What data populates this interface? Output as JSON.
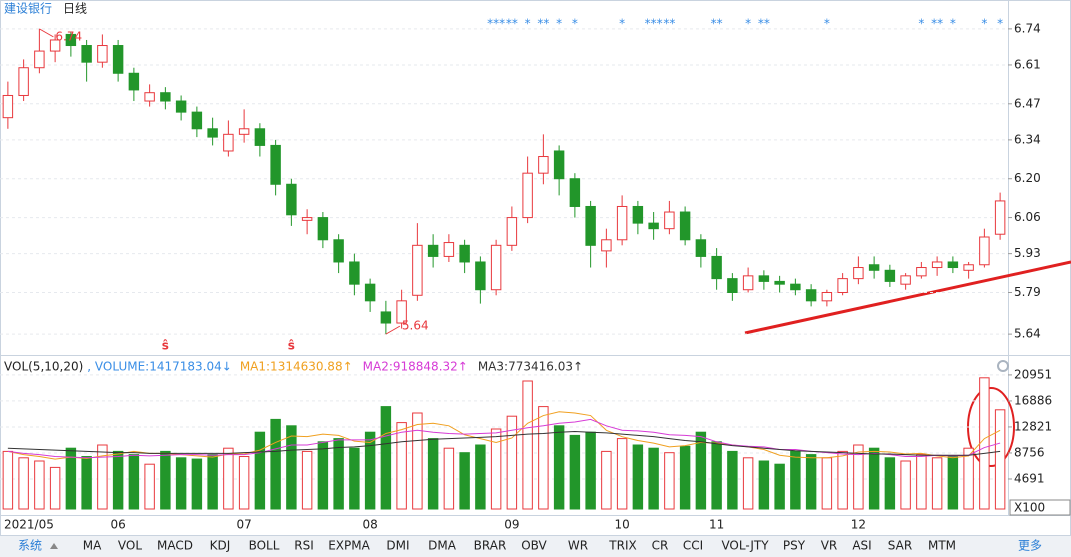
{
  "header": {
    "stock": "建设银行",
    "period": "日线"
  },
  "chart_data": [
    {
      "type": "candlestick",
      "categories": [
        "2021/05",
        null,
        null,
        null,
        null,
        null,
        null,
        "06",
        null,
        null,
        null,
        null,
        null,
        null,
        null,
        "07",
        null,
        null,
        null,
        null,
        null,
        null,
        null,
        "08",
        null,
        null,
        null,
        null,
        null,
        null,
        null,
        null,
        "09",
        null,
        null,
        null,
        null,
        null,
        null,
        "10",
        null,
        null,
        null,
        null,
        null,
        "11",
        null,
        null,
        null,
        null,
        null,
        null,
        null,
        null,
        "12",
        null,
        null,
        null,
        null,
        null,
        null,
        null,
        null,
        null
      ],
      "open": [
        6.42,
        6.5,
        6.6,
        6.66,
        6.72,
        6.68,
        6.62,
        6.68,
        6.58,
        6.48,
        6.51,
        6.48,
        6.44,
        6.38,
        6.3,
        6.36,
        6.38,
        6.32,
        6.18,
        6.05,
        6.06,
        5.98,
        5.9,
        5.82,
        5.72,
        5.68,
        5.78,
        5.96,
        5.92,
        5.96,
        5.9,
        5.8,
        5.96,
        6.06,
        6.22,
        6.3,
        6.2,
        6.1,
        5.94,
        5.98,
        6.1,
        6.04,
        6.02,
        6.08,
        5.98,
        5.92,
        5.84,
        5.8,
        5.85,
        5.83,
        5.82,
        5.8,
        5.76,
        5.79,
        5.84,
        5.89,
        5.87,
        5.82,
        5.85,
        5.88,
        5.9,
        5.87,
        5.89,
        6.0
      ],
      "high": [
        6.55,
        6.63,
        6.74,
        6.72,
        6.73,
        6.7,
        6.72,
        6.7,
        6.6,
        6.54,
        6.53,
        6.5,
        6.46,
        6.42,
        6.41,
        6.45,
        6.4,
        6.34,
        6.2,
        6.09,
        6.08,
        6.0,
        5.93,
        5.84,
        5.76,
        5.8,
        6.04,
        6.0,
        6.0,
        5.98,
        5.92,
        5.98,
        6.1,
        6.28,
        6.36,
        6.32,
        6.22,
        6.12,
        6.02,
        6.14,
        6.12,
        6.08,
        6.12,
        6.1,
        6.0,
        5.95,
        5.86,
        5.88,
        5.87,
        5.85,
        5.84,
        5.82,
        5.8,
        5.86,
        5.92,
        5.92,
        5.89,
        5.86,
        5.9,
        5.92,
        5.92,
        5.9,
        6.02,
        6.15
      ],
      "low": [
        6.38,
        6.48,
        6.58,
        6.62,
        6.64,
        6.55,
        6.6,
        6.55,
        6.48,
        6.46,
        6.45,
        6.41,
        6.35,
        6.32,
        6.28,
        6.33,
        6.28,
        6.14,
        6.03,
        6.0,
        5.95,
        5.86,
        5.78,
        5.72,
        5.64,
        5.66,
        5.76,
        5.88,
        5.9,
        5.86,
        5.75,
        5.78,
        5.94,
        6.04,
        6.18,
        6.14,
        6.06,
        5.88,
        5.88,
        5.96,
        6.0,
        5.98,
        6.0,
        5.96,
        5.88,
        5.8,
        5.76,
        5.79,
        5.8,
        5.79,
        5.78,
        5.74,
        5.74,
        5.78,
        5.82,
        5.84,
        5.81,
        5.8,
        5.84,
        5.85,
        5.86,
        5.84,
        5.88,
        5.98
      ],
      "close": [
        6.5,
        6.6,
        6.66,
        6.7,
        6.68,
        6.62,
        6.68,
        6.58,
        6.52,
        6.51,
        6.48,
        6.44,
        6.38,
        6.35,
        6.36,
        6.38,
        6.32,
        6.18,
        6.07,
        6.06,
        5.98,
        5.9,
        5.82,
        5.76,
        5.68,
        5.76,
        5.96,
        5.92,
        5.97,
        5.9,
        5.8,
        5.96,
        6.06,
        6.22,
        6.28,
        6.2,
        6.1,
        5.96,
        5.98,
        6.1,
        6.04,
        6.02,
        6.08,
        5.98,
        5.92,
        5.84,
        5.79,
        5.85,
        5.83,
        5.82,
        5.8,
        5.76,
        5.79,
        5.84,
        5.88,
        5.87,
        5.83,
        5.85,
        5.88,
        5.9,
        5.88,
        5.89,
        5.99,
        6.12
      ],
      "up_color": "#e8383d",
      "down_color": "#22962a",
      "signals": [
        null,
        null,
        null,
        null,
        null,
        null,
        null,
        null,
        null,
        null,
        null,
        null,
        null,
        null,
        null,
        null,
        null,
        null,
        null,
        null,
        null,
        null,
        null,
        null,
        null,
        null,
        null,
        null,
        null,
        null,
        null,
        "***",
        "**",
        "*",
        "**",
        "*",
        "*",
        null,
        null,
        "*",
        null,
        "***",
        "**",
        null,
        null,
        "**",
        null,
        "*",
        "**",
        null,
        null,
        null,
        "*",
        null,
        null,
        null,
        null,
        null,
        "*",
        "**",
        "*",
        null,
        "*",
        "*"
      ],
      "signal_color": "#3a8ee6",
      "markers": [
        null,
        null,
        null,
        null,
        null,
        null,
        null,
        null,
        null,
        null,
        "ŝ",
        null,
        null,
        null,
        null,
        null,
        null,
        null,
        "ŝ",
        null,
        null,
        null,
        null,
        null,
        null,
        null,
        null,
        null,
        null,
        null,
        null,
        null,
        null,
        null,
        null,
        null,
        null,
        null,
        null,
        null,
        null,
        null,
        null,
        null,
        null,
        null,
        null,
        null,
        null,
        null,
        null,
        null,
        null,
        null,
        null,
        null,
        null,
        null,
        null,
        null,
        null,
        null,
        null,
        null
      ],
      "marker_color": "#e8383d",
      "ylim": [
        5.59,
        6.79
      ],
      "yticks": [
        6.74,
        6.61,
        6.47,
        6.34,
        {
          "value": 6.2,
          "label": "6.20"
        },
        6.06,
        5.93,
        5.79,
        5.64
      ],
      "grid": true
    },
    {
      "type": "volume",
      "title": "VOL(5,10,20)",
      "volume_label": ", VOLUME:1417183.04↓",
      "volume_color": "#3a8ee6",
      "values": [
        9000,
        8000,
        7500,
        6500,
        9500,
        8200,
        10000,
        9000,
        8500,
        7000,
        9000,
        8000,
        7800,
        8500,
        9500,
        8200,
        12000,
        14000,
        13000,
        9000,
        10500,
        11000,
        9500,
        12000,
        16000,
        13500,
        15000,
        11000,
        9500,
        8800,
        10000,
        12500,
        14500,
        20000,
        16000,
        13000,
        11500,
        12000,
        9000,
        11000,
        10000,
        9500,
        8800,
        9800,
        12000,
        10500,
        9000,
        8000,
        7500,
        7000,
        9000,
        8500,
        8000,
        9000,
        10000,
        9500,
        8000,
        7500,
        8500,
        8000,
        8200,
        9500,
        20500,
        15500
      ],
      "series": [
        {
          "label": "MA1:1314630.88↑",
          "color": "#f0a020",
          "values": [
            9000,
            8500,
            8200,
            7800,
            8100,
            7900,
            8300,
            8600,
            9000,
            8700,
            8700,
            8500,
            8300,
            8100,
            8600,
            8600,
            9200,
            10400,
            11400,
            11300,
            11700,
            11500,
            10600,
            10400,
            11800,
            12400,
            13200,
            13400,
            13000,
            11600,
            11000,
            10400,
            11100,
            13400,
            14600,
            15200,
            15000,
            14600,
            12300,
            11300,
            10700,
            10300,
            9700,
            9900,
            10400,
            10300,
            10000,
            9700,
            9300,
            8400,
            8100,
            8000,
            8000,
            8300,
            8900,
            9000,
            8900,
            8600,
            8700,
            8300,
            8000,
            8300,
            11000,
            12300
          ]
        },
        {
          "label": "MA2:918848.32↑",
          "color": "#d63bd6",
          "values": [
            9000,
            8700,
            8500,
            8200,
            8100,
            8000,
            8100,
            8200,
            8400,
            8300,
            8400,
            8500,
            8500,
            8400,
            8500,
            8500,
            8800,
            9400,
            10000,
            10000,
            10400,
            10800,
            10800,
            10800,
            11400,
            12000,
            12300,
            12000,
            11800,
            11700,
            11800,
            11900,
            12300,
            12700,
            13000,
            13400,
            13600,
            14000,
            13000,
            12300,
            12200,
            12000,
            11600,
            11500,
            11300,
            10500,
            10000,
            9800,
            9700,
            9300,
            9300,
            9000,
            8800,
            8600,
            8500,
            8700,
            8500,
            8200,
            8200,
            8400,
            8300,
            8400,
            9600,
            10300
          ]
        },
        {
          "label": "MA3:773416.03↑",
          "color": "#333333",
          "values": [
            9500,
            9400,
            9300,
            9200,
            9100,
            9000,
            8900,
            8800,
            8800,
            8700,
            8700,
            8700,
            8700,
            8700,
            8700,
            8800,
            8900,
            9000,
            9200,
            9300,
            9400,
            9600,
            9700,
            9900,
            10200,
            10500,
            10700,
            10900,
            11000,
            11100,
            11200,
            11300,
            11500,
            11700,
            11800,
            12000,
            12100,
            12000,
            11900,
            11700,
            11500,
            11300,
            11000,
            10700,
            10500,
            10200,
            9900,
            9700,
            9500,
            9300,
            9100,
            9000,
            8900,
            8800,
            8700,
            8600,
            8600,
            8500,
            8400,
            8400,
            8400,
            8400,
            8700,
            9000
          ]
        }
      ],
      "ylim": [
        0,
        22500
      ],
      "yticks": [
        20951,
        16886,
        12821,
        8756,
        4691
      ],
      "unit": "X100",
      "grid": true
    }
  ],
  "tabs": {
    "system": "系统",
    "items": [
      "MA",
      "VOL",
      "MACD",
      "KDJ",
      "BOLL",
      "RSI",
      "EXPMA",
      "DMI",
      "DMA",
      "BRAR",
      "OBV",
      "WR",
      "TRIX",
      "CR",
      "CCI",
      "VOL-JTY",
      "PSY",
      "VR",
      "ASI",
      "SAR",
      "MTM"
    ],
    "more": "更多"
  }
}
